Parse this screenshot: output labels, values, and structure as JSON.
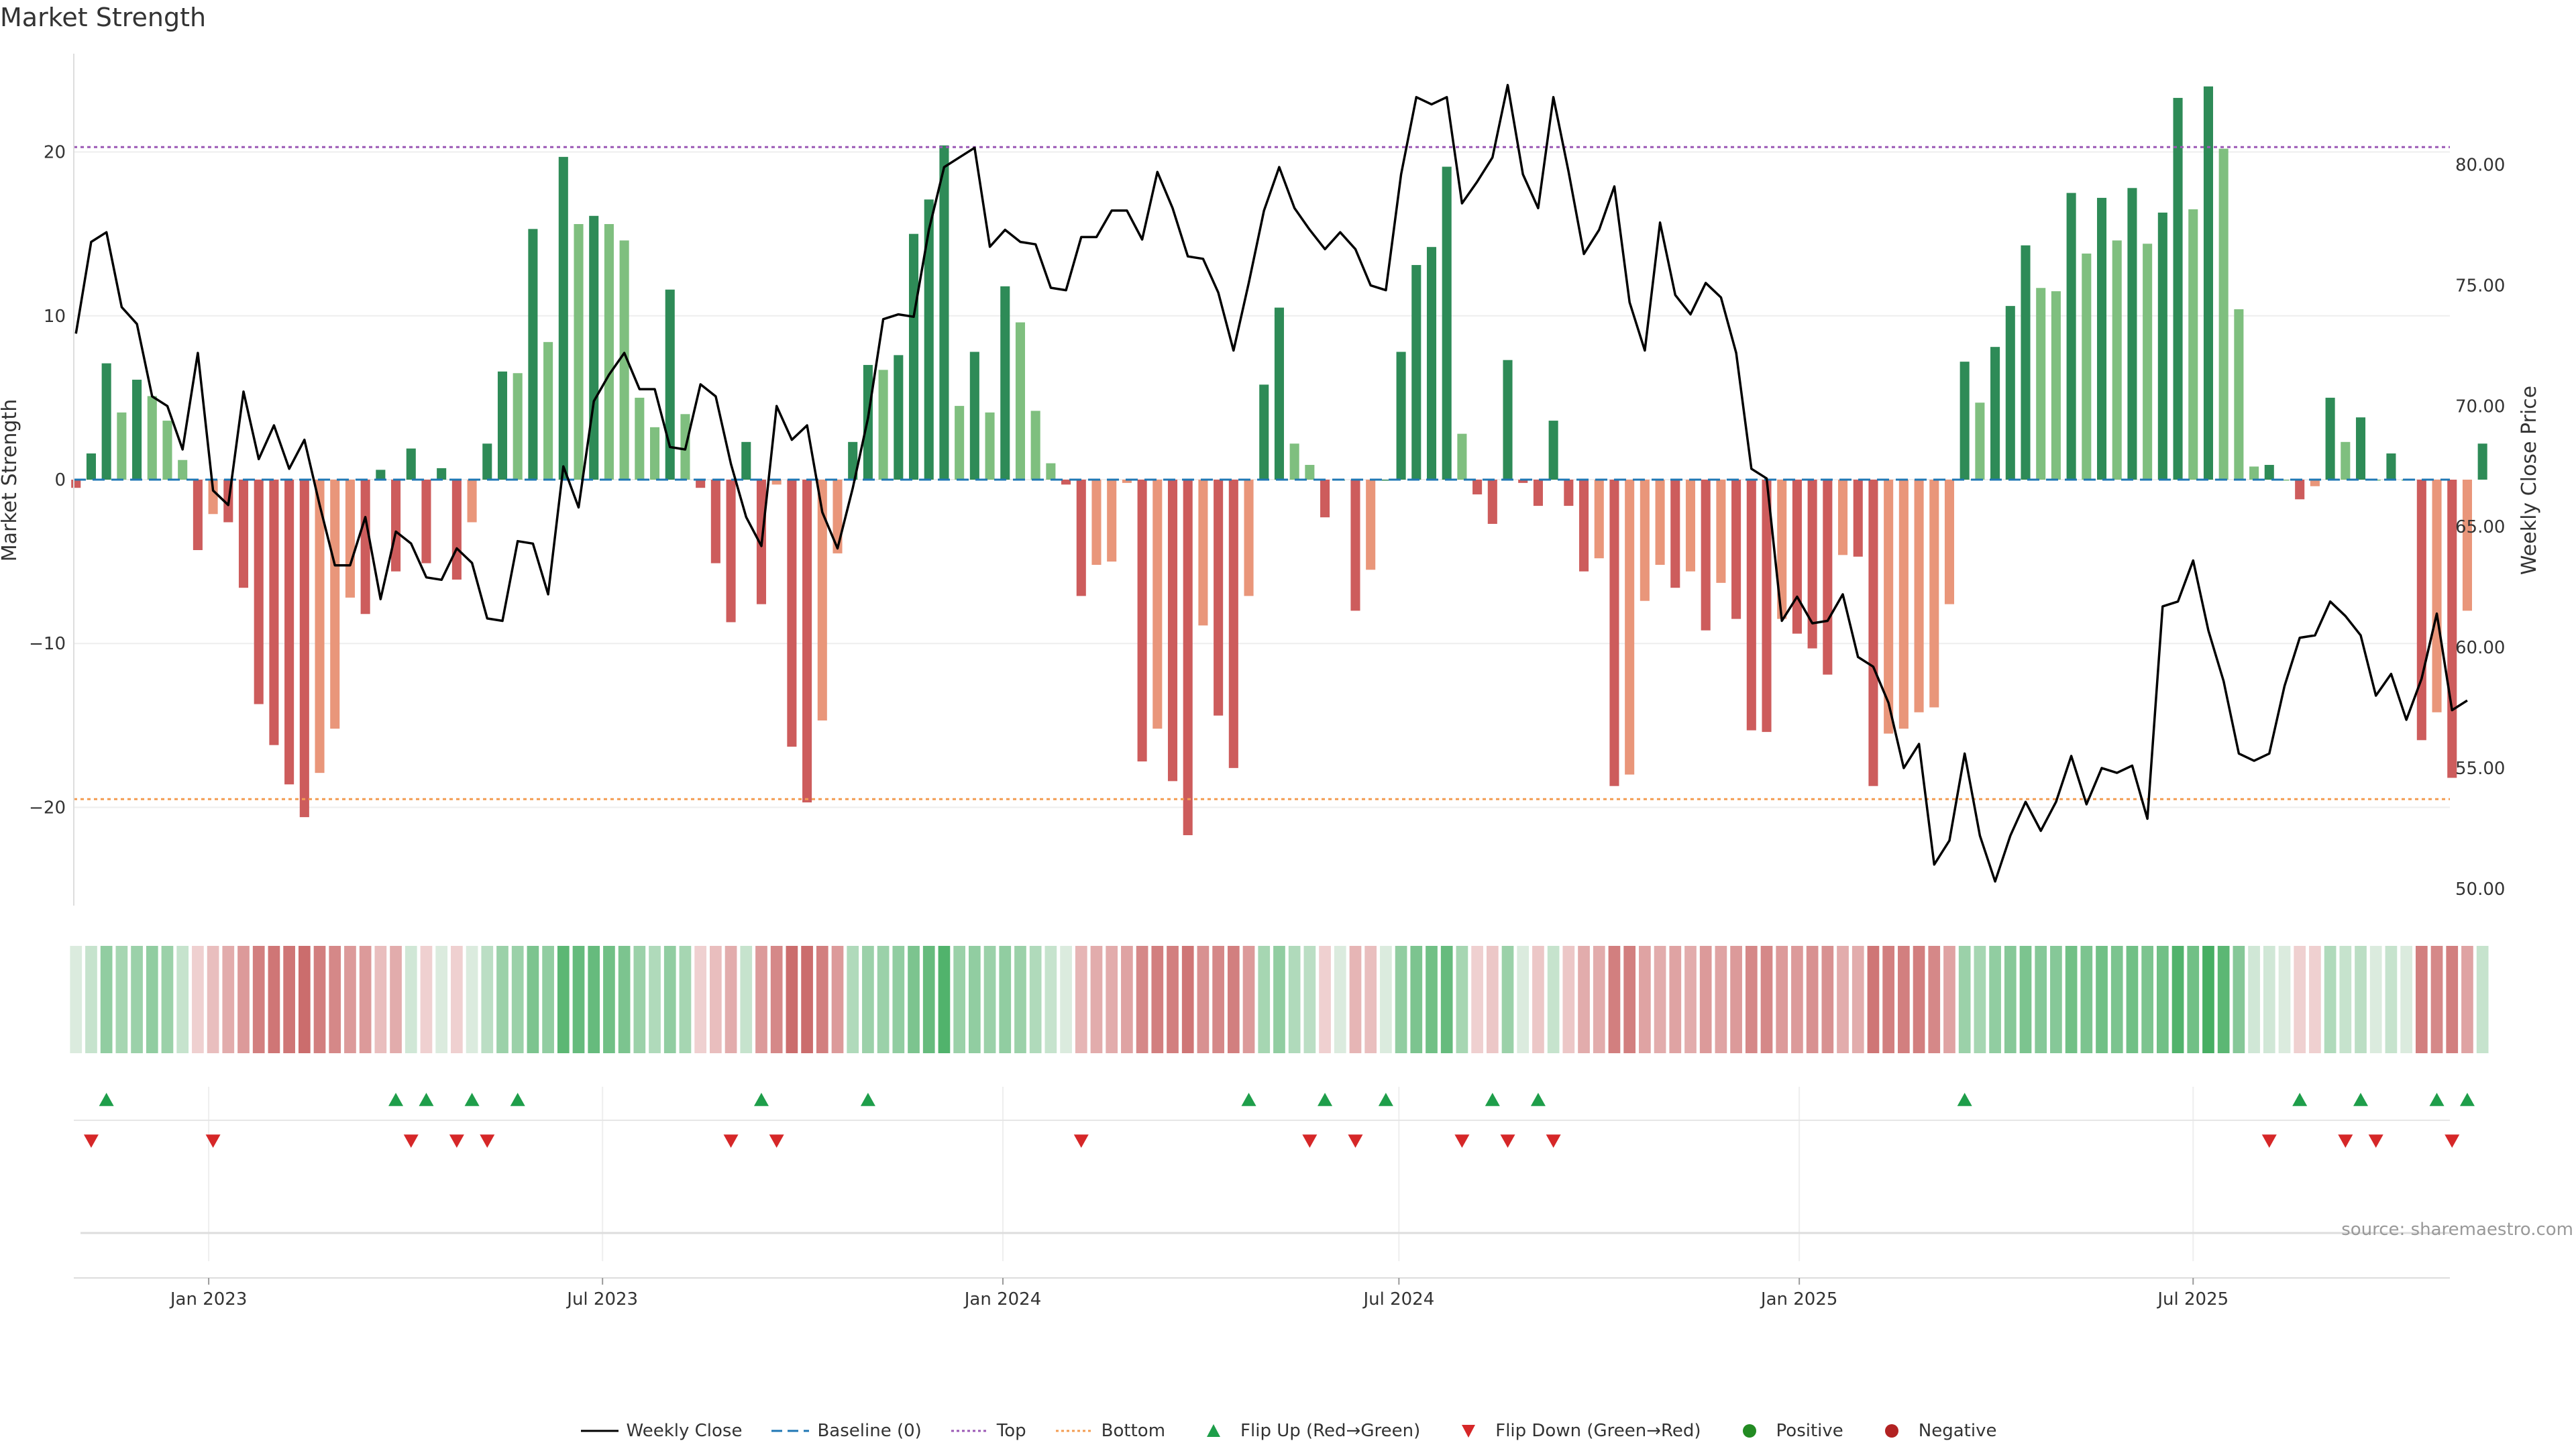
{
  "chart_data": {
    "type": "bar",
    "title": "Market Strength",
    "ylabel_left": "Market Strength",
    "ylabel_right": "Weekly Close Price",
    "source": "source: sharemaestro.com",
    "ylim_left": [
      -26,
      26
    ],
    "ylim_right": [
      49.3,
      84.6
    ],
    "yticks_left": [
      -20,
      -10,
      0,
      10,
      20
    ],
    "yticks_left_labels": [
      "−20",
      "−10",
      "0",
      "10",
      "20"
    ],
    "yticks_right": [
      50,
      55,
      60,
      65,
      70,
      75,
      80
    ],
    "yticks_right_labels": [
      "50.00",
      "55.00",
      "60.00",
      "65.00",
      "70.00",
      "75.00",
      "80.00"
    ],
    "x_start": "2022-10-31",
    "x_end": "2025-10-27",
    "xticks": [
      {
        "date": "2023-01-01",
        "label": "Jan 2023"
      },
      {
        "date": "2023-07-01",
        "label": "Jul 2023"
      },
      {
        "date": "2024-01-01",
        "label": "Jan 2024"
      },
      {
        "date": "2024-07-01",
        "label": "Jul 2024"
      },
      {
        "date": "2025-01-01",
        "label": "Jan 2025"
      },
      {
        "date": "2025-07-01",
        "label": "Jul 2025"
      }
    ],
    "top_line": 20.3,
    "bottom_line": -19.5,
    "first_week": "2022-11-01",
    "strength": [
      -0.5,
      1.6,
      7.1,
      4.1,
      6.1,
      5.1,
      3.6,
      1.2,
      -4.3,
      -2.1,
      -2.6,
      -6.6,
      -13.7,
      -16.2,
      -18.6,
      -20.6,
      -17.9,
      -15.2,
      -7.2,
      -8.2,
      0.6,
      -5.6,
      1.9,
      -5.1,
      0.7,
      -6.1,
      -2.6,
      2.2,
      6.6,
      6.5,
      15.3,
      8.4,
      19.7,
      15.6,
      16.1,
      15.6,
      14.6,
      5,
      3.2,
      11.6,
      4,
      -0.5,
      -5.1,
      -8.7,
      2.3,
      -7.6,
      -0.3,
      -16.3,
      -19.7,
      -14.7,
      -4.5,
      2.3,
      7,
      6.7,
      7.6,
      15,
      17.1,
      20.4,
      4.5,
      7.8,
      4.1,
      11.8,
      9.6,
      4.2,
      1,
      -0.3,
      -7.1,
      -5.2,
      -5,
      -0.2,
      -17.2,
      -15.2,
      -18.4,
      -21.7,
      -8.9,
      -14.4,
      -17.6,
      -7.1,
      5.8,
      10.5,
      2.2,
      0.9,
      -2.3,
      0,
      -8,
      -5.5,
      0,
      7.8,
      13.1,
      14.2,
      19.1,
      2.8,
      -0.9,
      -2.7,
      7.3,
      -0.2,
      -1.6,
      3.6,
      -1.6,
      -5.6,
      -4.8,
      -18.7,
      -18,
      -7.4,
      -5.2,
      -6.6,
      -5.6,
      -9.2,
      -6.3,
      -8.5,
      -15.3,
      -15.4,
      -8.5,
      -9.4,
      -10.3,
      -11.9,
      -4.6,
      -4.7,
      -18.7,
      -15.5,
      -15.2,
      -14.2,
      -13.9,
      -7.6,
      7.2,
      4.7,
      8.1,
      10.6,
      14.3,
      11.7,
      11.5,
      17.5,
      13.8,
      17.2,
      14.6,
      17.8,
      14.4,
      16.3,
      23.3,
      16.5,
      24,
      20.2,
      10.4,
      0.8,
      0.9,
      0,
      -1.2,
      -0.4,
      5,
      2.3,
      3.8,
      0,
      1.6,
      0,
      -15.9,
      -14.2,
      -18.2,
      -8,
      2.2
    ],
    "close": [
      73.0,
      76.8,
      77.2,
      74.1,
      73.4,
      70.4,
      70.0,
      68.2,
      72.2,
      66.5,
      65.9,
      70.6,
      67.8,
      69.2,
      67.4,
      68.6,
      65.9,
      63.4,
      63.4,
      65.4,
      62.0,
      64.8,
      64.3,
      62.9,
      62.8,
      64.1,
      63.5,
      61.2,
      61.1,
      64.4,
      64.3,
      62.2,
      67.5,
      65.8,
      70.2,
      71.3,
      72.2,
      70.7,
      70.7,
      68.3,
      68.2,
      70.9,
      70.4,
      67.6,
      65.4,
      64.2,
      70.0,
      68.6,
      69.2,
      65.6,
      64.1,
      66.6,
      69.5,
      73.6,
      73.8,
      73.7,
      77.3,
      79.9,
      80.3,
      80.7,
      76.6,
      77.3,
      76.8,
      76.7,
      74.9,
      74.8,
      77.0,
      77.0,
      78.1,
      78.1,
      76.9,
      79.7,
      78.2,
      76.2,
      76.1,
      74.7,
      72.3,
      75.1,
      78.1,
      79.9,
      78.2,
      77.3,
      76.5,
      77.2,
      76.5,
      75.0,
      74.8,
      79.6,
      82.8,
      82.5,
      82.8,
      78.4,
      79.3,
      80.3,
      83.3,
      79.6,
      78.2,
      82.8,
      79.7,
      76.3,
      77.3,
      79.1,
      74.3,
      72.3,
      77.6,
      74.6,
      73.8,
      75.1,
      74.5,
      72.2,
      67.4,
      67.0,
      61.1,
      62.1,
      61.0,
      61.1,
      62.2,
      59.6,
      59.2,
      57.7,
      55.0,
      56.0,
      51.0,
      52.0,
      55.6,
      52.2,
      50.3,
      52.2,
      53.6,
      52.4,
      53.6,
      55.5,
      53.5,
      55.0,
      54.8,
      55.1,
      52.9,
      61.7,
      61.9,
      63.6,
      60.7,
      58.6,
      55.6,
      55.3,
      55.6,
      58.4,
      60.4,
      60.5,
      61.9,
      61.3,
      60.5,
      58.0,
      58.9,
      57.0,
      58.7,
      61.4,
      57.4,
      57.8
    ],
    "flip_up_weeks": [
      2,
      21,
      23,
      26,
      29,
      45,
      52,
      77,
      82,
      86,
      93,
      96,
      124,
      146,
      150,
      155,
      157
    ],
    "flip_down_weeks": [
      1,
      9,
      22,
      25,
      27,
      43,
      46,
      66,
      81,
      84,
      91,
      94,
      97,
      144,
      149,
      151,
      156
    ],
    "heat_values": [
      0.1,
      0.2,
      0.45,
      0.35,
      0.4,
      0.45,
      0.4,
      0.2,
      -0.1,
      -0.2,
      -0.3,
      -0.4,
      -0.55,
      -0.6,
      -0.6,
      -0.65,
      -0.55,
      -0.5,
      -0.4,
      -0.4,
      -0.2,
      -0.3,
      0.15,
      -0.1,
      0.1,
      -0.1,
      0.1,
      0.25,
      0.4,
      0.4,
      0.55,
      0.45,
      0.7,
      0.65,
      0.65,
      0.6,
      0.55,
      0.4,
      0.3,
      0.45,
      0.35,
      -0.1,
      -0.2,
      -0.3,
      0.2,
      -0.4,
      -0.5,
      -0.65,
      -0.65,
      -0.55,
      -0.4,
      0.3,
      0.4,
      0.4,
      0.45,
      0.55,
      0.65,
      0.75,
      0.4,
      0.45,
      0.4,
      0.45,
      0.4,
      0.3,
      0.2,
      0.1,
      -0.25,
      -0.3,
      -0.3,
      -0.35,
      -0.5,
      -0.55,
      -0.55,
      -0.6,
      -0.45,
      -0.5,
      -0.55,
      -0.4,
      0.35,
      0.45,
      0.3,
      0.25,
      -0.1,
      0.1,
      -0.25,
      -0.2,
      0.1,
      0.45,
      0.55,
      0.6,
      0.65,
      0.35,
      -0.1,
      -0.15,
      0.4,
      0.1,
      -0.15,
      0.2,
      -0.15,
      -0.3,
      -0.3,
      -0.55,
      -0.55,
      -0.35,
      -0.3,
      -0.35,
      -0.3,
      -0.4,
      -0.35,
      -0.4,
      -0.5,
      -0.5,
      -0.4,
      -0.4,
      -0.45,
      -0.45,
      -0.3,
      -0.3,
      -0.6,
      -0.55,
      -0.55,
      -0.55,
      -0.5,
      -0.35,
      0.4,
      0.35,
      0.45,
      0.5,
      0.55,
      0.5,
      0.5,
      0.6,
      0.55,
      0.6,
      0.55,
      0.6,
      0.55,
      0.6,
      0.75,
      0.6,
      0.8,
      0.7,
      0.5,
      0.15,
      0.15,
      0.1,
      -0.1,
      -0.1,
      0.3,
      0.2,
      0.25,
      0.1,
      0.2,
      0.1,
      -0.55,
      -0.5,
      -0.55,
      -0.35,
      0.2
    ],
    "legend": [
      {
        "key": "close",
        "label": "Weekly Close"
      },
      {
        "key": "baseline",
        "label": "Baseline (0)"
      },
      {
        "key": "top",
        "label": "Top"
      },
      {
        "key": "bottom",
        "label": "Bottom"
      },
      {
        "key": "flip_up",
        "label": "Flip Up (Red→Green)"
      },
      {
        "key": "flip_down",
        "label": "Flip Down (Green→Red)"
      },
      {
        "key": "positive",
        "label": "Positive"
      },
      {
        "key": "negative",
        "label": "Negative"
      }
    ],
    "colors": {
      "pos_dark": "#2e8b57",
      "pos_light": "#7fbf7f",
      "neg_dark": "#cd5c5c",
      "neg_light": "#e9967a",
      "close": "#000000",
      "baseline": "#1f77b4",
      "top": "#9b59b6",
      "bottom": "#f39c52",
      "flip_up": "#1e9e4a",
      "flip_down": "#d62728",
      "positive": "#228b22",
      "negative": "#b22222"
    }
  }
}
